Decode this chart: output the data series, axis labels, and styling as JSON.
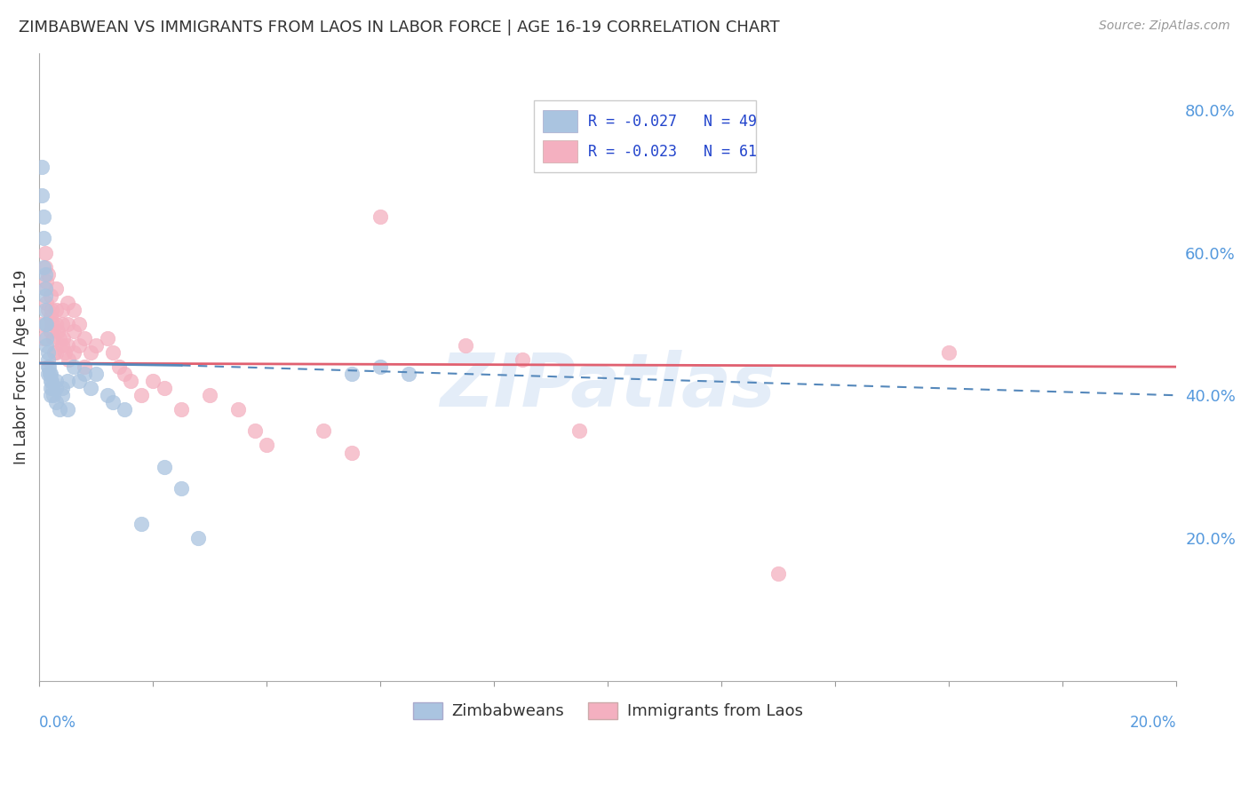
{
  "title": "ZIMBABWEAN VS IMMIGRANTS FROM LAOS IN LABOR FORCE | AGE 16-19 CORRELATION CHART",
  "source": "Source: ZipAtlas.com",
  "ylabel": "In Labor Force | Age 16-19",
  "right_yticks": [
    0.2,
    0.4,
    0.6,
    0.8
  ],
  "right_ytick_labels": [
    "20.0%",
    "40.0%",
    "60.0%",
    "80.0%"
  ],
  "xmin": 0.0,
  "xmax": 0.2,
  "ymin": 0.0,
  "ymax": 0.88,
  "series": [
    {
      "name": "Zimbabweans",
      "R": -0.027,
      "N": 49,
      "scatter_color": "#aac4e0",
      "legend_color": "#aac4e0",
      "trend_color": "#5588bb",
      "trend_dash": true,
      "x": [
        0.0005,
        0.0005,
        0.0007,
        0.0008,
        0.0008,
        0.001,
        0.001,
        0.001,
        0.001,
        0.001,
        0.0012,
        0.0013,
        0.0013,
        0.0015,
        0.0015,
        0.0015,
        0.0016,
        0.0017,
        0.0018,
        0.002,
        0.002,
        0.002,
        0.002,
        0.0022,
        0.0023,
        0.0025,
        0.003,
        0.003,
        0.003,
        0.0035,
        0.004,
        0.004,
        0.005,
        0.005,
        0.006,
        0.007,
        0.008,
        0.009,
        0.01,
        0.012,
        0.013,
        0.015,
        0.018,
        0.022,
        0.025,
        0.028,
        0.055,
        0.06,
        0.065
      ],
      "y": [
        0.68,
        0.72,
        0.65,
        0.62,
        0.58,
        0.57,
        0.55,
        0.54,
        0.52,
        0.5,
        0.48,
        0.47,
        0.5,
        0.46,
        0.45,
        0.43,
        0.44,
        0.44,
        0.43,
        0.43,
        0.42,
        0.41,
        0.4,
        0.42,
        0.41,
        0.4,
        0.42,
        0.41,
        0.39,
        0.38,
        0.41,
        0.4,
        0.42,
        0.38,
        0.44,
        0.42,
        0.43,
        0.41,
        0.43,
        0.4,
        0.39,
        0.38,
        0.22,
        0.3,
        0.27,
        0.2,
        0.43,
        0.44,
        0.43
      ]
    },
    {
      "name": "Immigrants from Laos",
      "R": -0.023,
      "N": 61,
      "scatter_color": "#f4b0c0",
      "legend_color": "#f4b0c0",
      "trend_color": "#e06070",
      "trend_dash": false,
      "x": [
        0.0005,
        0.0007,
        0.001,
        0.001,
        0.001,
        0.0012,
        0.0013,
        0.0015,
        0.0016,
        0.002,
        0.002,
        0.002,
        0.0022,
        0.0024,
        0.0025,
        0.0027,
        0.003,
        0.003,
        0.003,
        0.003,
        0.0032,
        0.0035,
        0.004,
        0.004,
        0.004,
        0.0042,
        0.0045,
        0.005,
        0.005,
        0.005,
        0.0052,
        0.006,
        0.006,
        0.006,
        0.007,
        0.007,
        0.008,
        0.008,
        0.009,
        0.01,
        0.012,
        0.013,
        0.014,
        0.015,
        0.016,
        0.018,
        0.02,
        0.022,
        0.025,
        0.03,
        0.035,
        0.038,
        0.04,
        0.05,
        0.055,
        0.06,
        0.075,
        0.085,
        0.095,
        0.13,
        0.16
      ],
      "y": [
        0.5,
        0.48,
        0.6,
        0.58,
        0.55,
        0.56,
        0.53,
        0.57,
        0.52,
        0.54,
        0.51,
        0.49,
        0.52,
        0.5,
        0.48,
        0.46,
        0.55,
        0.52,
        0.5,
        0.46,
        0.49,
        0.48,
        0.52,
        0.5,
        0.47,
        0.48,
        0.46,
        0.53,
        0.5,
        0.47,
        0.45,
        0.52,
        0.49,
        0.46,
        0.5,
        0.47,
        0.48,
        0.44,
        0.46,
        0.47,
        0.48,
        0.46,
        0.44,
        0.43,
        0.42,
        0.4,
        0.42,
        0.41,
        0.38,
        0.4,
        0.38,
        0.35,
        0.33,
        0.35,
        0.32,
        0.65,
        0.47,
        0.45,
        0.35,
        0.15,
        0.46
      ]
    }
  ],
  "watermark": "ZIPatlas",
  "bg_color": "#ffffff",
  "grid_color": "#d0d0d0"
}
